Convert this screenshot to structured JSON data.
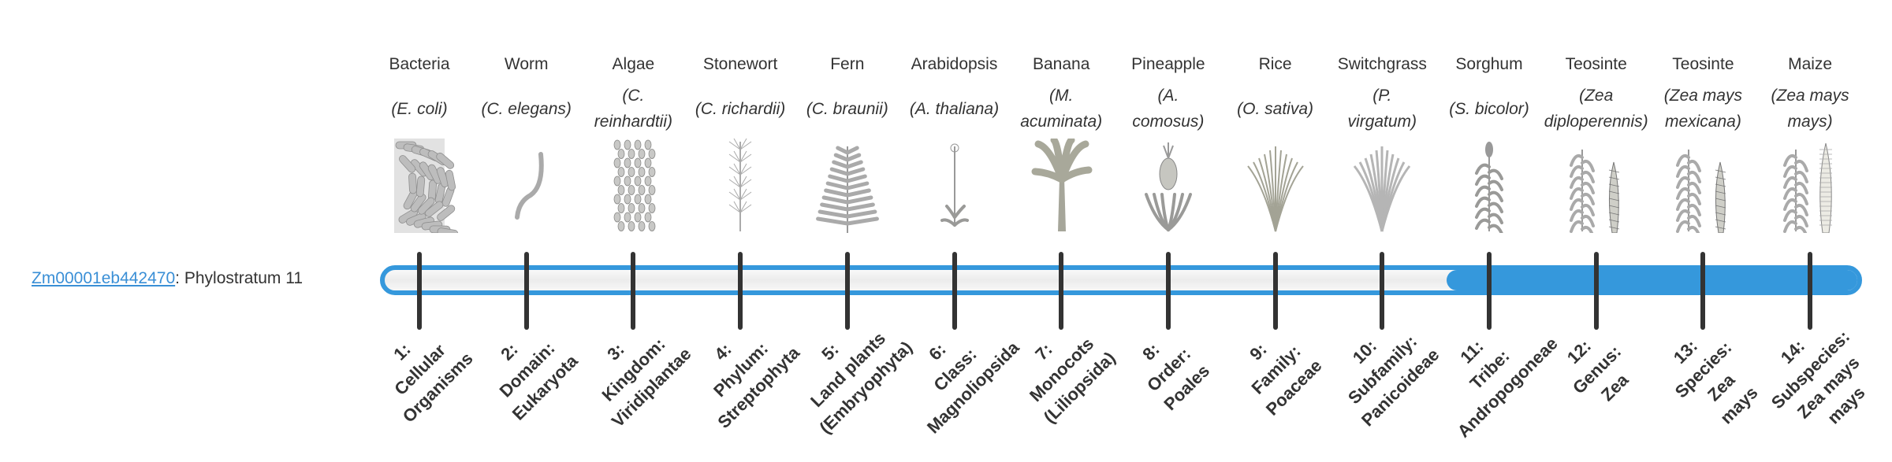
{
  "gene": {
    "id": "Zm00001eb442470",
    "separator": ":",
    "phylostratum": "Phylostratum 11",
    "phylostratum_value": 11
  },
  "colors": {
    "accent": "#3598dc",
    "text": "#333333",
    "link": "#3a8fd6"
  },
  "organisms": [
    {
      "name": "Bacteria",
      "scientific": "(E. coli)",
      "icon": "bacteria-icon"
    },
    {
      "name": "Worm",
      "scientific": "(C. elegans)",
      "icon": "worm-icon"
    },
    {
      "name": "Algae",
      "scientific": "(C. reinhardtii)",
      "icon": "algae-icon"
    },
    {
      "name": "Stonewort",
      "scientific": "(C. richardii)",
      "icon": "stonewort-icon"
    },
    {
      "name": "Fern",
      "scientific": "(C. braunii)",
      "icon": "fern-icon"
    },
    {
      "name": "Arabidopsis",
      "scientific": "(A. thaliana)",
      "icon": "arabidopsis-icon"
    },
    {
      "name": "Banana",
      "scientific": "(M. acuminata)",
      "icon": "banana-icon"
    },
    {
      "name": "Pineapple",
      "scientific": "(A. comosus)",
      "icon": "pineapple-icon"
    },
    {
      "name": "Rice",
      "scientific": "(O. sativa)",
      "icon": "rice-icon"
    },
    {
      "name": "Switchgrass",
      "scientific": "(P. virgatum)",
      "icon": "switchgrass-icon"
    },
    {
      "name": "Sorghum",
      "scientific": "(S. bicolor)",
      "icon": "sorghum-icon"
    },
    {
      "name": "Teosinte",
      "scientific": "(Zea diploperennis)",
      "icon": "teosinte-icon"
    },
    {
      "name": "Teosinte",
      "scientific": "(Zea mays mexicana)",
      "icon": "teosinte-mexicana-icon"
    },
    {
      "name": "Maize",
      "scientific": "(Zea mays mays)",
      "icon": "maize-icon"
    }
  ],
  "scientific_lines": [
    [
      "(E. coli)"
    ],
    [
      "(C. elegans)"
    ],
    [
      "(C.",
      "reinhardtii)"
    ],
    [
      "(C. richardii)"
    ],
    [
      "(C. braunii)"
    ],
    [
      "(A. thaliana)"
    ],
    [
      "(M.",
      "acuminata)"
    ],
    [
      "(A.",
      "comosus)"
    ],
    [
      "(O. sativa)"
    ],
    [
      "(P.",
      "virgatum)"
    ],
    [
      "(S. bicolor)"
    ],
    [
      "(Zea",
      "diploperennis)"
    ],
    [
      "(Zea mays",
      "mexicana)"
    ],
    [
      "(Zea mays",
      "mays)"
    ]
  ],
  "strata": [
    [
      "1:",
      "Cellular",
      "Organisms"
    ],
    [
      "2:",
      "Domain:",
      "Eukaryota"
    ],
    [
      "3:",
      "Kingdom:",
      "Viridiplantae"
    ],
    [
      "4:",
      "Phylum:",
      "Streptophyta"
    ],
    [
      "5:",
      "Land plants",
      "(Embryophyta)"
    ],
    [
      "6:",
      "Class:",
      "Magnoliopsida"
    ],
    [
      "7:",
      "Monocots",
      "(Liliopsida)"
    ],
    [
      "8:",
      "Order:",
      "Poales"
    ],
    [
      "9:",
      "Family:",
      "Poaceae"
    ],
    [
      "10:",
      "Subfamily:",
      "Panicoideae"
    ],
    [
      "11:",
      "Tribe:",
      "Andropogoneae"
    ],
    [
      "12:",
      "Genus:",
      "Zea"
    ],
    [
      "13:",
      "Species:",
      "Zea",
      "mays"
    ],
    [
      "14:",
      "Subspecies:",
      "Zea mays",
      "mays"
    ]
  ]
}
